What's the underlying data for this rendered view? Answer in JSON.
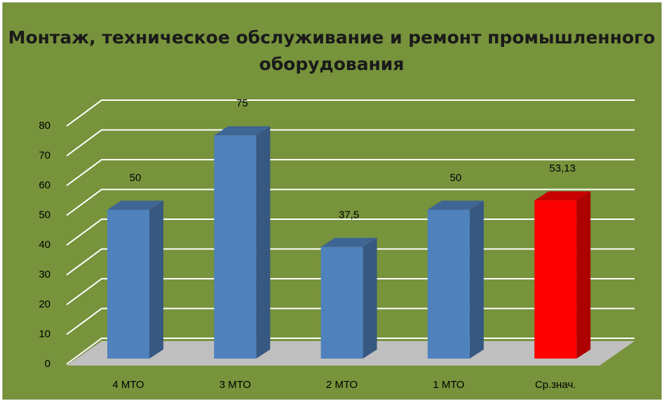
{
  "chart_data": {
    "type": "bar3d",
    "title": "Монтаж, техническое обслуживание и ремонт промышленного оборудования",
    "categories": [
      "4 МТО",
      "3 МТО",
      "2 МТО",
      "1 МТО",
      "Ср.знач."
    ],
    "values": [
      50,
      75,
      37.5,
      50,
      53.13
    ],
    "value_labels": [
      "50",
      "75",
      "37,5",
      "50",
      "53,13"
    ],
    "colors": [
      "#4f81bd",
      "#4f81bd",
      "#4f81bd",
      "#4f81bd",
      "#ff0000"
    ],
    "ylim": [
      0,
      80
    ],
    "yticks": [
      0,
      10,
      20,
      30,
      40,
      50,
      60,
      70,
      80
    ],
    "grid": true
  }
}
